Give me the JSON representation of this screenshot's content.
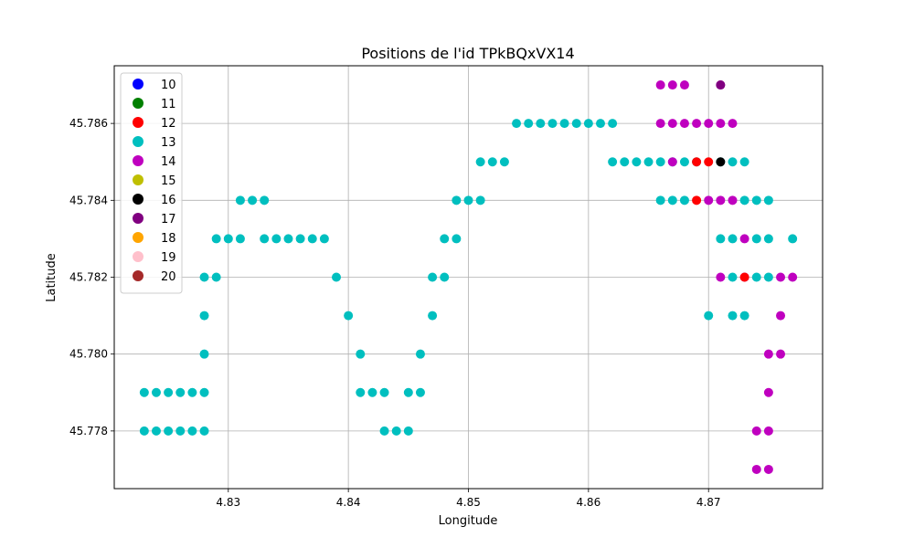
{
  "chart_data": {
    "type": "scatter",
    "title": "Positions de l'id TPkBQxVX14",
    "xlabel": "Longitude",
    "ylabel": "Latitude",
    "xlim": [
      4.8205,
      4.8795
    ],
    "ylim": [
      45.7765,
      45.7875
    ],
    "xticks": [
      4.83,
      4.84,
      4.85,
      4.86,
      4.87
    ],
    "xtick_labels": [
      "4.83",
      "4.84",
      "4.85",
      "4.86",
      "4.87"
    ],
    "yticks": [
      45.778,
      45.78,
      45.782,
      45.784,
      45.786
    ],
    "ytick_labels": [
      "45.778",
      "45.780",
      "45.782",
      "45.784",
      "45.786"
    ],
    "grid": true,
    "legend_position": "top-left",
    "legend": [
      {
        "label": "10",
        "color": "#0000ff"
      },
      {
        "label": "11",
        "color": "#008000"
      },
      {
        "label": "12",
        "color": "#ff0000"
      },
      {
        "label": "13",
        "color": "#00bfbf"
      },
      {
        "label": "14",
        "color": "#bf00bf"
      },
      {
        "label": "15",
        "color": "#bfbf00"
      },
      {
        "label": "16",
        "color": "#000000"
      },
      {
        "label": "17",
        "color": "#800080"
      },
      {
        "label": "18",
        "color": "#ffa500"
      },
      {
        "label": "19",
        "color": "#ffc0cb"
      },
      {
        "label": "20",
        "color": "#a52a2a"
      }
    ],
    "series": [
      {
        "name": "13",
        "color": "#00bfbf",
        "points": [
          [
            4.823,
            45.778
          ],
          [
            4.824,
            45.778
          ],
          [
            4.825,
            45.778
          ],
          [
            4.826,
            45.778
          ],
          [
            4.827,
            45.778
          ],
          [
            4.828,
            45.778
          ],
          [
            4.823,
            45.779
          ],
          [
            4.824,
            45.779
          ],
          [
            4.825,
            45.779
          ],
          [
            4.826,
            45.779
          ],
          [
            4.827,
            45.779
          ],
          [
            4.828,
            45.779
          ],
          [
            4.828,
            45.78
          ],
          [
            4.828,
            45.781
          ],
          [
            4.828,
            45.782
          ],
          [
            4.829,
            45.782
          ],
          [
            4.829,
            45.783
          ],
          [
            4.83,
            45.783
          ],
          [
            4.831,
            45.783
          ],
          [
            4.831,
            45.784
          ],
          [
            4.832,
            45.784
          ],
          [
            4.833,
            45.784
          ],
          [
            4.833,
            45.783
          ],
          [
            4.834,
            45.783
          ],
          [
            4.835,
            45.783
          ],
          [
            4.836,
            45.783
          ],
          [
            4.837,
            45.783
          ],
          [
            4.838,
            45.783
          ],
          [
            4.839,
            45.782
          ],
          [
            4.84,
            45.781
          ],
          [
            4.841,
            45.78
          ],
          [
            4.841,
            45.779
          ],
          [
            4.842,
            45.779
          ],
          [
            4.843,
            45.779
          ],
          [
            4.843,
            45.778
          ],
          [
            4.844,
            45.778
          ],
          [
            4.845,
            45.778
          ],
          [
            4.845,
            45.779
          ],
          [
            4.846,
            45.779
          ],
          [
            4.846,
            45.78
          ],
          [
            4.847,
            45.781
          ],
          [
            4.847,
            45.782
          ],
          [
            4.848,
            45.782
          ],
          [
            4.848,
            45.783
          ],
          [
            4.849,
            45.783
          ],
          [
            4.849,
            45.784
          ],
          [
            4.85,
            45.784
          ],
          [
            4.851,
            45.784
          ],
          [
            4.851,
            45.785
          ],
          [
            4.852,
            45.785
          ],
          [
            4.853,
            45.785
          ],
          [
            4.854,
            45.786
          ],
          [
            4.855,
            45.786
          ],
          [
            4.856,
            45.786
          ],
          [
            4.857,
            45.786
          ],
          [
            4.858,
            45.786
          ],
          [
            4.859,
            45.786
          ],
          [
            4.86,
            45.786
          ],
          [
            4.861,
            45.786
          ],
          [
            4.862,
            45.786
          ],
          [
            4.862,
            45.785
          ],
          [
            4.863,
            45.785
          ],
          [
            4.864,
            45.785
          ],
          [
            4.865,
            45.785
          ],
          [
            4.866,
            45.785
          ],
          [
            4.867,
            45.785
          ],
          [
            4.868,
            45.785
          ],
          [
            4.869,
            45.785
          ],
          [
            4.866,
            45.784
          ],
          [
            4.867,
            45.784
          ],
          [
            4.868,
            45.784
          ],
          [
            4.871,
            45.785
          ],
          [
            4.872,
            45.785
          ],
          [
            4.873,
            45.785
          ],
          [
            4.873,
            45.784
          ],
          [
            4.874,
            45.784
          ],
          [
            4.875,
            45.784
          ],
          [
            4.871,
            45.783
          ],
          [
            4.872,
            45.783
          ],
          [
            4.874,
            45.783
          ],
          [
            4.875,
            45.783
          ],
          [
            4.877,
            45.783
          ],
          [
            4.872,
            45.782
          ],
          [
            4.874,
            45.782
          ],
          [
            4.875,
            45.782
          ],
          [
            4.87,
            45.781
          ],
          [
            4.872,
            45.781
          ],
          [
            4.873,
            45.781
          ]
        ]
      },
      {
        "name": "14",
        "color": "#bf00bf",
        "points": [
          [
            4.866,
            45.787
          ],
          [
            4.867,
            45.787
          ],
          [
            4.868,
            45.787
          ],
          [
            4.871,
            45.787
          ],
          [
            4.866,
            45.786
          ],
          [
            4.867,
            45.786
          ],
          [
            4.868,
            45.786
          ],
          [
            4.869,
            45.786
          ],
          [
            4.87,
            45.786
          ],
          [
            4.871,
            45.786
          ],
          [
            4.872,
            45.786
          ],
          [
            4.867,
            45.785
          ],
          [
            4.87,
            45.784
          ],
          [
            4.871,
            45.784
          ],
          [
            4.872,
            45.784
          ],
          [
            4.873,
            45.783
          ],
          [
            4.871,
            45.782
          ],
          [
            4.873,
            45.782
          ],
          [
            4.876,
            45.782
          ],
          [
            4.877,
            45.782
          ],
          [
            4.876,
            45.781
          ],
          [
            4.875,
            45.78
          ],
          [
            4.876,
            45.78
          ],
          [
            4.875,
            45.779
          ],
          [
            4.874,
            45.778
          ],
          [
            4.875,
            45.778
          ],
          [
            4.874,
            45.777
          ],
          [
            4.875,
            45.777
          ]
        ]
      },
      {
        "name": "12",
        "color": "#ff0000",
        "points": [
          [
            4.869,
            45.785
          ],
          [
            4.87,
            45.785
          ],
          [
            4.869,
            45.784
          ],
          [
            4.873,
            45.782
          ]
        ]
      },
      {
        "name": "16",
        "color": "#000000",
        "points": [
          [
            4.871,
            45.785
          ]
        ]
      },
      {
        "name": "17",
        "color": "#800080",
        "points": [
          [
            4.871,
            45.787
          ]
        ]
      }
    ]
  }
}
